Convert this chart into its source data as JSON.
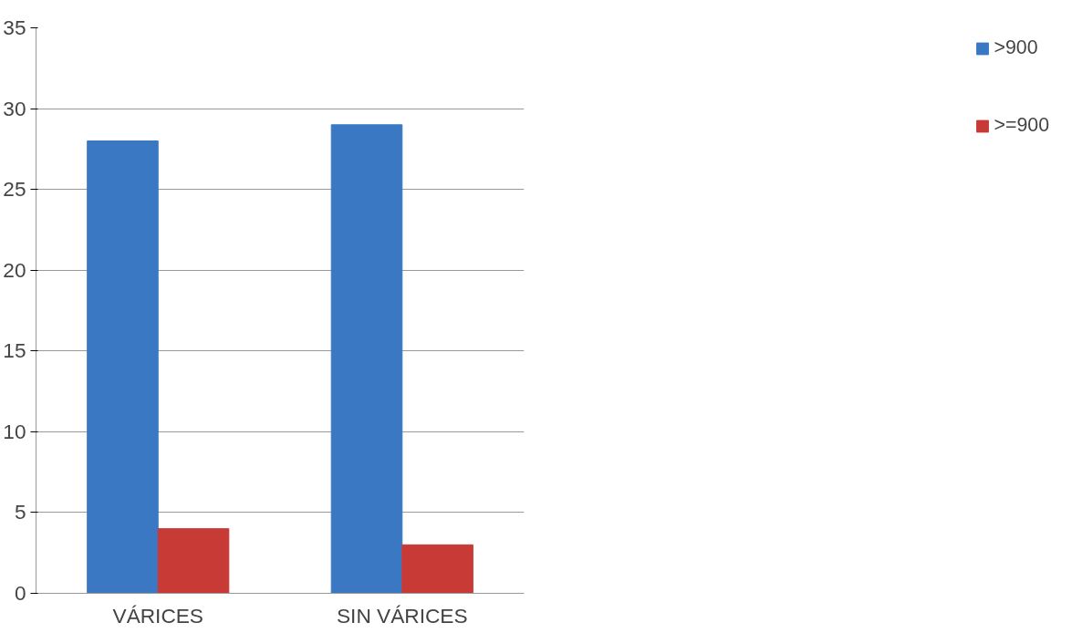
{
  "chart_data": {
    "type": "bar",
    "categories": [
      "VÁRICES",
      "SIN VÁRICES"
    ],
    "series": [
      {
        "name": ">900",
        "color": "#3a78c4",
        "values": [
          28,
          29
        ]
      },
      {
        "name": ">=900",
        "color": "#c83a36",
        "values": [
          4,
          3
        ]
      }
    ],
    "ylim": [
      0,
      35
    ],
    "yticks": [
      0,
      5,
      10,
      15,
      20,
      25,
      30,
      35
    ],
    "grid": "y",
    "legend": "right"
  }
}
